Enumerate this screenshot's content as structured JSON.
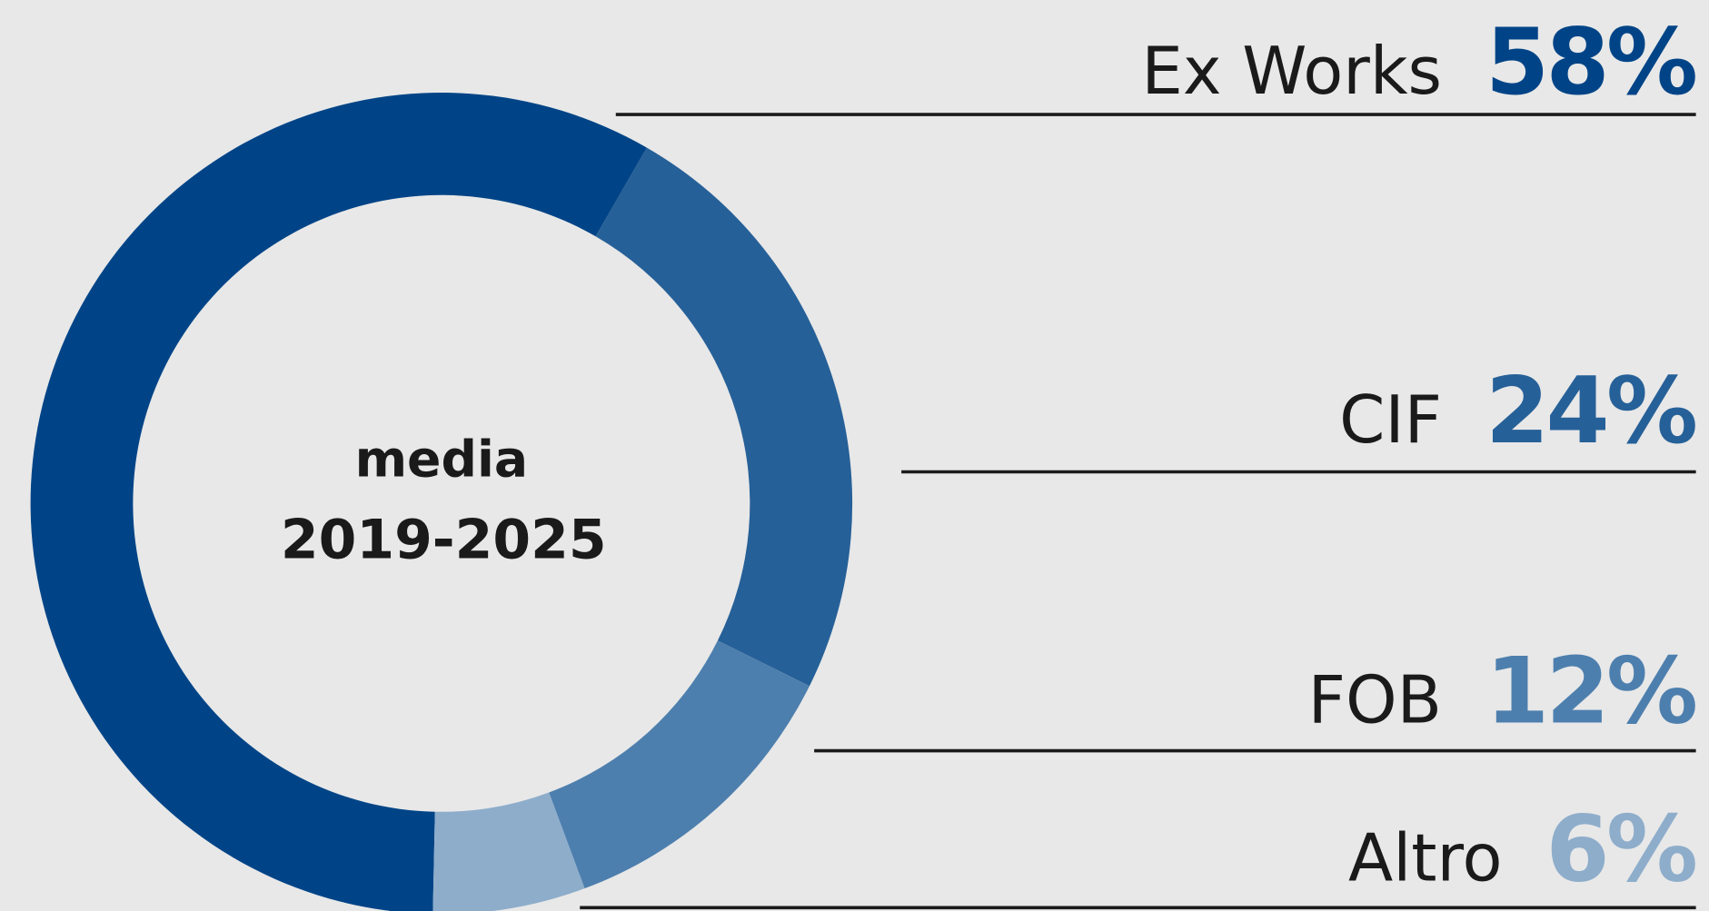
{
  "chart_data": {
    "type": "donut",
    "center_text": [
      "media",
      "2019-2025"
    ],
    "categories": [
      "Ex Works",
      "CIF",
      "FOB",
      "Altro"
    ],
    "values": [
      58,
      24,
      12,
      6
    ],
    "value_labels": [
      "58%",
      "24%",
      "12%",
      "6%"
    ],
    "colors": [
      "#004487",
      "#266098",
      "#4d7fae",
      "#8eadcb"
    ]
  }
}
